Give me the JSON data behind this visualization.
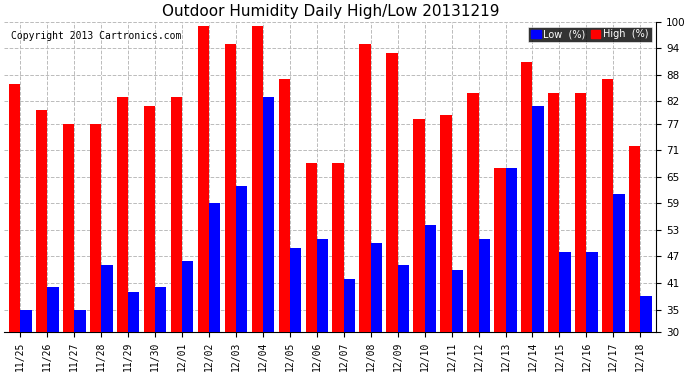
{
  "title": "Outdoor Humidity Daily High/Low 20131219",
  "copyright": "Copyright 2013 Cartronics.com",
  "dates": [
    "11/25",
    "11/26",
    "11/27",
    "11/28",
    "11/29",
    "11/30",
    "12/01",
    "12/02",
    "12/03",
    "12/04",
    "12/05",
    "12/06",
    "12/07",
    "12/08",
    "12/09",
    "12/10",
    "12/11",
    "12/12",
    "12/13",
    "12/14",
    "12/15",
    "12/16",
    "12/17",
    "12/18"
  ],
  "high": [
    86,
    80,
    77,
    77,
    83,
    81,
    83,
    99,
    95,
    99,
    87,
    68,
    68,
    95,
    93,
    78,
    79,
    84,
    67,
    91,
    84,
    84,
    87,
    72
  ],
  "low": [
    35,
    40,
    35,
    45,
    39,
    40,
    46,
    59,
    63,
    83,
    49,
    51,
    42,
    50,
    45,
    54,
    44,
    51,
    67,
    81,
    48,
    48,
    61,
    38
  ],
  "ylim": [
    30,
    100
  ],
  "yticks": [
    30,
    35,
    41,
    47,
    53,
    59,
    65,
    71,
    77,
    82,
    88,
    94,
    100
  ],
  "bar_color_high": "#ff0000",
  "bar_color_low": "#0000ff",
  "bg_color": "#ffffff",
  "grid_color": "#bbbbbb",
  "title_fontsize": 11,
  "copyright_fontsize": 7,
  "legend_labels": [
    "Low  (%)",
    "High  (%)"
  ]
}
